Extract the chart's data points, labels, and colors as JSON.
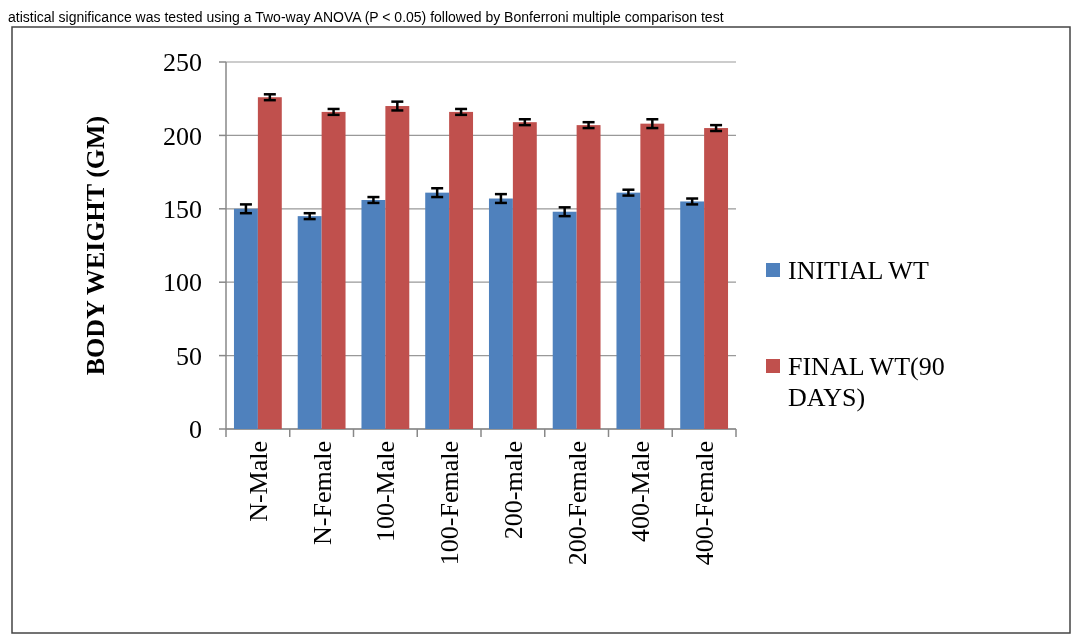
{
  "chart_data": {
    "type": "bar",
    "ylabel": "BODY WEIGHT (GM)",
    "categories": [
      "N-Male",
      "N-Female",
      "100-Male",
      "100-Female",
      "200-male",
      "200-Female",
      "400-Male",
      "400-Female"
    ],
    "series": [
      {
        "name": "INITIAL WT",
        "color": "#4f81bd",
        "values": [
          150,
          145,
          156,
          161,
          157,
          148,
          161,
          155
        ],
        "errors": [
          3,
          2,
          2,
          3,
          3,
          3,
          2,
          2
        ]
      },
      {
        "name": "FINAL WT(90 DAYS)",
        "color": "#c0504d",
        "values": [
          226,
          216,
          220,
          216,
          209,
          207,
          208,
          205
        ],
        "errors": [
          2,
          2,
          3,
          2,
          2,
          2,
          3,
          2
        ]
      }
    ],
    "ylim": [
      0,
      250
    ],
    "yticks": [
      0,
      50,
      100,
      150,
      200,
      250
    ],
    "grid": "y",
    "legend": "right",
    "annotations": [
      "atistical significance was tested using a Two-way ANOVA (P < 0.05) followed by Bonferroni multiple comparison test"
    ]
  }
}
